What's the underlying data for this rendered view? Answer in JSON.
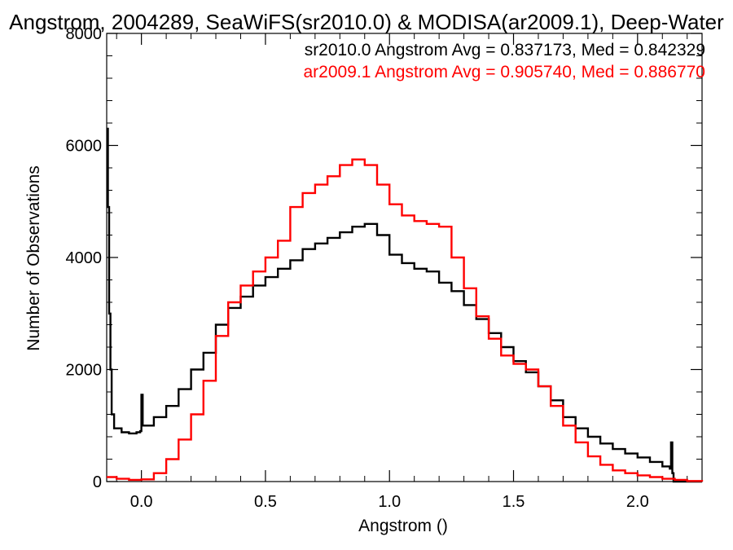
{
  "chart_data": {
    "type": "line",
    "title": "Angstrom, 2004289, SeaWiFS(sr2010.0) & MODISA(ar2009.1), Deep-Water",
    "xlabel": "Angstrom ()",
    "ylabel": "Number of Observations",
    "xlim": [
      -0.14,
      2.26
    ],
    "ylim": [
      0,
      8000
    ],
    "x_ticks": [
      0.0,
      0.5,
      1.0,
      1.5,
      2.0
    ],
    "x_tick_labels": [
      "0.0",
      "0.5",
      "1.0",
      "1.5",
      "2.0"
    ],
    "y_ticks": [
      0,
      2000,
      4000,
      6000,
      8000
    ],
    "y_tick_labels": [
      "0",
      "2000",
      "4000",
      "6000",
      "8000"
    ],
    "grid": false,
    "series": [
      {
        "name": "sr2010.0",
        "color": "#000000",
        "annotation": "sr2010.0 Angstrom Avg = 0.837173, Med = 0.842329",
        "points": [
          [
            -0.14,
            6300
          ],
          [
            -0.135,
            4900
          ],
          [
            -0.13,
            3000
          ],
          [
            -0.125,
            2000
          ],
          [
            -0.12,
            1200
          ],
          [
            -0.11,
            950
          ],
          [
            -0.08,
            880
          ],
          [
            -0.05,
            860
          ],
          [
            -0.02,
            880
          ],
          [
            -0.005,
            900
          ],
          [
            0.0,
            1550
          ],
          [
            0.005,
            1000
          ],
          [
            0.05,
            1150
          ],
          [
            0.1,
            1350
          ],
          [
            0.15,
            1650
          ],
          [
            0.2,
            2000
          ],
          [
            0.25,
            2300
          ],
          [
            0.3,
            2800
          ],
          [
            0.35,
            3100
          ],
          [
            0.4,
            3300
          ],
          [
            0.45,
            3500
          ],
          [
            0.5,
            3650
          ],
          [
            0.55,
            3800
          ],
          [
            0.6,
            3950
          ],
          [
            0.65,
            4150
          ],
          [
            0.7,
            4250
          ],
          [
            0.75,
            4350
          ],
          [
            0.8,
            4450
          ],
          [
            0.85,
            4550
          ],
          [
            0.9,
            4600
          ],
          [
            0.95,
            4400
          ],
          [
            1.0,
            4050
          ],
          [
            1.05,
            3900
          ],
          [
            1.1,
            3800
          ],
          [
            1.15,
            3750
          ],
          [
            1.2,
            3550
          ],
          [
            1.25,
            3400
          ],
          [
            1.3,
            3150
          ],
          [
            1.35,
            2900
          ],
          [
            1.4,
            2650
          ],
          [
            1.45,
            2400
          ],
          [
            1.5,
            2150
          ],
          [
            1.55,
            1950
          ],
          [
            1.6,
            1700
          ],
          [
            1.65,
            1450
          ],
          [
            1.7,
            1150
          ],
          [
            1.75,
            950
          ],
          [
            1.8,
            800
          ],
          [
            1.85,
            680
          ],
          [
            1.9,
            580
          ],
          [
            1.95,
            500
          ],
          [
            2.0,
            430
          ],
          [
            2.05,
            350
          ],
          [
            2.1,
            270
          ],
          [
            2.13,
            230
          ],
          [
            2.135,
            700
          ],
          [
            2.14,
            150
          ],
          [
            2.145,
            0
          ],
          [
            2.26,
            0
          ]
        ]
      },
      {
        "name": "ar2009.1",
        "color": "#ff0000",
        "annotation": "ar2009.1 Angstrom Avg = 0.905740, Med = 0.886770",
        "points": [
          [
            -0.14,
            80
          ],
          [
            -0.1,
            50
          ],
          [
            -0.05,
            30
          ],
          [
            0.0,
            40
          ],
          [
            0.05,
            150
          ],
          [
            0.1,
            400
          ],
          [
            0.15,
            750
          ],
          [
            0.2,
            1200
          ],
          [
            0.25,
            1800
          ],
          [
            0.3,
            2600
          ],
          [
            0.35,
            3200
          ],
          [
            0.4,
            3500
          ],
          [
            0.45,
            3750
          ],
          [
            0.5,
            4000
          ],
          [
            0.55,
            4300
          ],
          [
            0.6,
            4900
          ],
          [
            0.65,
            5150
          ],
          [
            0.7,
            5300
          ],
          [
            0.75,
            5450
          ],
          [
            0.8,
            5650
          ],
          [
            0.85,
            5750
          ],
          [
            0.9,
            5650
          ],
          [
            0.95,
            5300
          ],
          [
            1.0,
            4950
          ],
          [
            1.05,
            4750
          ],
          [
            1.1,
            4650
          ],
          [
            1.15,
            4600
          ],
          [
            1.2,
            4550
          ],
          [
            1.25,
            4000
          ],
          [
            1.3,
            3450
          ],
          [
            1.35,
            2950
          ],
          [
            1.4,
            2550
          ],
          [
            1.45,
            2250
          ],
          [
            1.5,
            2100
          ],
          [
            1.55,
            2000
          ],
          [
            1.6,
            1700
          ],
          [
            1.65,
            1350
          ],
          [
            1.7,
            1000
          ],
          [
            1.75,
            700
          ],
          [
            1.8,
            450
          ],
          [
            1.85,
            300
          ],
          [
            1.9,
            200
          ],
          [
            1.95,
            150
          ],
          [
            2.0,
            110
          ],
          [
            2.05,
            80
          ],
          [
            2.1,
            50
          ],
          [
            2.15,
            30
          ],
          [
            2.2,
            10
          ],
          [
            2.26,
            0
          ]
        ]
      }
    ]
  }
}
